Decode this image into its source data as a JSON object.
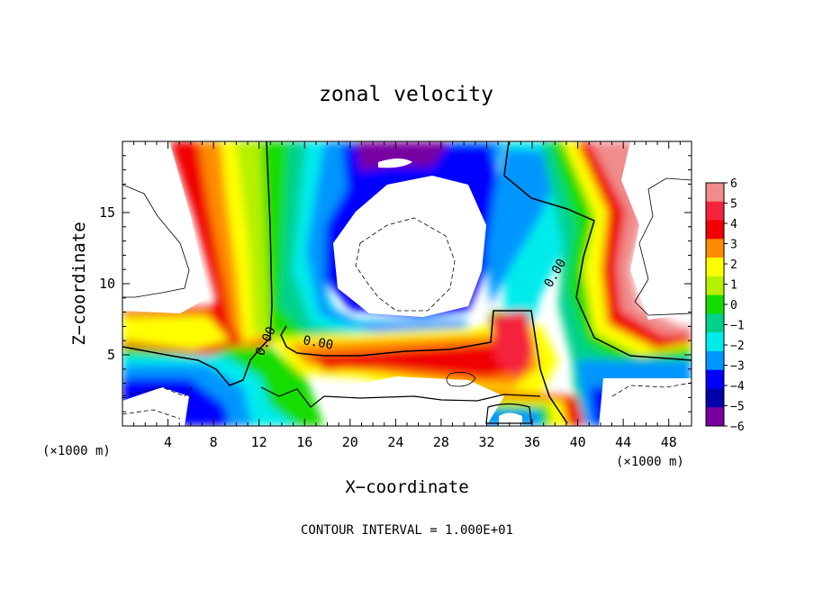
{
  "title": "zonal velocity",
  "footer": "CONTOUR INTERVAL = 1.000E+01",
  "chart_data": {
    "type": "heatmap",
    "title": "zonal velocity",
    "xlabel": "X−coordinate",
    "ylabel": "Z−coordinate",
    "x_unit_label": "(×1000 m)",
    "y_unit_label": "(×1000 m)",
    "xlim": [
      0,
      50
    ],
    "ylim": [
      0,
      20
    ],
    "x_ticks": [
      4,
      8,
      12,
      16,
      20,
      24,
      28,
      32,
      36,
      40,
      44,
      48
    ],
    "x_tick_labels": [
      "4",
      "8",
      "12",
      "16",
      "20",
      "24",
      "28",
      "32",
      "36",
      "40",
      "44",
      "48"
    ],
    "y_ticks": [
      5,
      10,
      15
    ],
    "y_tick_labels": [
      "5",
      "10",
      "15"
    ],
    "colorbar": {
      "levels": [
        6,
        5,
        4,
        3,
        2,
        1,
        0,
        -1,
        -2,
        -3,
        -4,
        -5,
        -6
      ],
      "labels": [
        "6",
        "5",
        "4",
        "3",
        "2",
        "1",
        "0",
        "−1",
        "−2",
        "−3",
        "−4",
        "−5",
        "−6"
      ],
      "colors": [
        "#f08c8c",
        "#f5223c",
        "#f00000",
        "#ff8c00",
        "#ffff00",
        "#b4f000",
        "#14dc00",
        "#00d28c",
        "#00ebeb",
        "#0096ff",
        "#0000ff",
        "#0000aa",
        "#7800a0"
      ]
    },
    "contour_labels": [
      "0.00",
      "0.00",
      "0.00"
    ],
    "contour_interval": "1.000E+01"
  }
}
